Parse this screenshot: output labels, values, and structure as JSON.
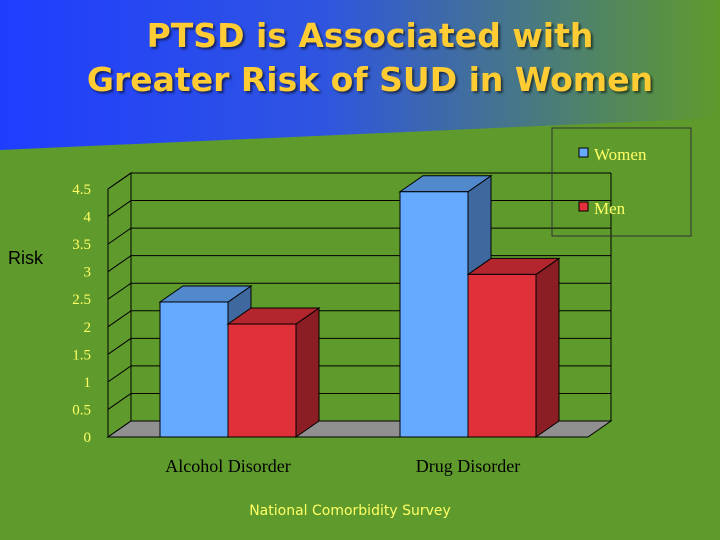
{
  "slide": {
    "title_line1": "PTSD is Associated with",
    "title_line2": "Greater Risk of SUD in Women",
    "source": "National Comorbidity Survey",
    "background_color": "#5f9a2c",
    "banner_color": "#1f3dff",
    "title_color": "#ffcc33"
  },
  "chart_data": {
    "type": "bar",
    "style": "3d-clustered",
    "categories": [
      "Alcohol Disorder",
      "Drug Disorder"
    ],
    "series": [
      {
        "name": "Women",
        "values": [
          2.45,
          4.45
        ],
        "color": "#66aaff"
      },
      {
        "name": "Men",
        "values": [
          2.05,
          2.95
        ],
        "color": "#e0303a"
      }
    ],
    "ylabel": "Risk",
    "ylim": [
      0,
      4.5
    ],
    "yticks": [
      "0",
      "0.5",
      "1",
      "1.5",
      "2",
      "2.5",
      "3",
      "3.5",
      "4",
      "4.5"
    ],
    "grid": true,
    "legend": "top-right"
  }
}
